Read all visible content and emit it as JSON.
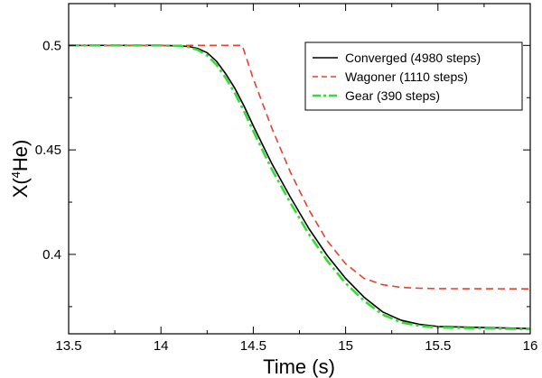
{
  "chart_data": {
    "type": "line",
    "xlabel": "Time (s)",
    "ylabel": {
      "prefix": "X(",
      "superscript": "4",
      "suffix": "He)"
    },
    "xlim": [
      13.5,
      16
    ],
    "ylim": [
      0.362,
      0.52
    ],
    "xticks": [
      "13.5",
      "14",
      "14.5",
      "15",
      "15.5",
      "16"
    ],
    "yticks": [
      "0.4",
      "0.45",
      "0.5"
    ],
    "grid": false,
    "legend_position": "top-right",
    "series": [
      {
        "name": "Converged (4980 steps)",
        "color": "#000000",
        "style": "solid",
        "x": [
          13.5,
          14.0,
          14.1,
          14.15,
          14.2,
          14.25,
          14.3,
          14.35,
          14.4,
          14.45,
          14.5,
          14.55,
          14.6,
          14.7,
          14.8,
          14.9,
          15.0,
          15.1,
          15.2,
          15.3,
          15.4,
          15.5,
          16.0
        ],
        "y": [
          0.5,
          0.5,
          0.4998,
          0.4995,
          0.4985,
          0.4965,
          0.4925,
          0.4865,
          0.4795,
          0.471,
          0.4615,
          0.4525,
          0.4435,
          0.4275,
          0.4125,
          0.3995,
          0.3885,
          0.3795,
          0.3725,
          0.3685,
          0.3665,
          0.3655,
          0.3645
        ]
      },
      {
        "name": "Wagoner (1110 steps)",
        "color": "#e8402a",
        "style": "dashed",
        "x": [
          13.5,
          14.44,
          14.5,
          14.6,
          14.7,
          14.8,
          14.9,
          15.0,
          15.1,
          15.2,
          15.3,
          15.4,
          15.5,
          16.0
        ],
        "y": [
          0.5,
          0.5,
          0.484,
          0.4605,
          0.4395,
          0.4215,
          0.4065,
          0.3955,
          0.3885,
          0.3855,
          0.3842,
          0.3838,
          0.3836,
          0.3835
        ]
      },
      {
        "name": "Gear (390 steps)",
        "color": "#33dd33",
        "style": "dash-dot",
        "x": [
          13.5,
          14.0,
          14.1,
          14.15,
          14.2,
          14.25,
          14.3,
          14.35,
          14.4,
          14.45,
          14.5,
          14.55,
          14.6,
          14.7,
          14.8,
          14.9,
          15.0,
          15.1,
          15.2,
          15.3,
          15.4,
          15.5,
          16.0
        ],
        "y": [
          0.5,
          0.5,
          0.4997,
          0.4992,
          0.4978,
          0.4952,
          0.4908,
          0.4845,
          0.4772,
          0.4685,
          0.459,
          0.4498,
          0.4408,
          0.4248,
          0.4098,
          0.397,
          0.3862,
          0.3778,
          0.3712,
          0.3675,
          0.3658,
          0.365,
          0.3642
        ]
      }
    ]
  }
}
